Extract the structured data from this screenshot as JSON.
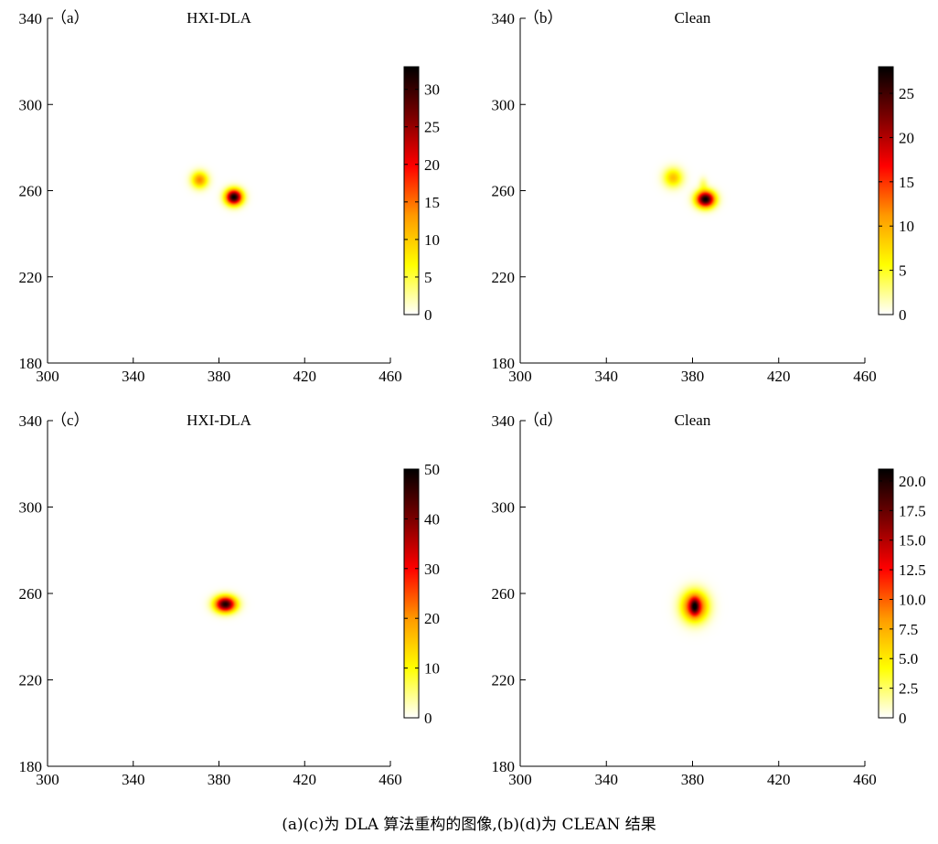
{
  "chart_data": [
    {
      "type": "heatmap",
      "panel_label": "（a）",
      "title": "HXI-DLA",
      "xlim": [
        300,
        460
      ],
      "ylim": [
        180,
        340
      ],
      "xticks": [
        "300",
        "340",
        "380",
        "420",
        "460"
      ],
      "yticks": [
        "180",
        "220",
        "260",
        "300",
        "340"
      ],
      "colorbar": {
        "min": 0,
        "max": 33,
        "ticks": [
          0,
          5,
          10,
          15,
          20,
          25,
          30
        ],
        "tick_labels": [
          "0",
          "5",
          "10",
          "15",
          "20",
          "25",
          "30"
        ]
      },
      "sources": [
        {
          "x": 371,
          "y": 265,
          "peak": 14,
          "sx": 2.6,
          "sy": 2.6
        },
        {
          "x": 387,
          "y": 257,
          "peak": 33,
          "sx": 2.7,
          "sy": 2.5
        }
      ]
    },
    {
      "type": "heatmap",
      "panel_label": "（b）",
      "title": "Clean",
      "xlim": [
        300,
        460
      ],
      "ylim": [
        180,
        340
      ],
      "xticks": [
        "300",
        "340",
        "380",
        "420",
        "460"
      ],
      "yticks": [
        "180",
        "220",
        "260",
        "300",
        "340"
      ],
      "colorbar": {
        "min": 0,
        "max": 28,
        "ticks": [
          0,
          5,
          10,
          15,
          20,
          25
        ],
        "tick_labels": [
          "0",
          "5",
          "10",
          "15",
          "20",
          "25"
        ]
      },
      "sources": [
        {
          "x": 371,
          "y": 266,
          "peak": 9,
          "sx": 3.0,
          "sy": 3.0
        },
        {
          "x": 386,
          "y": 256,
          "peak": 28,
          "sx": 3.0,
          "sy": 2.6
        },
        {
          "x": 385,
          "y": 263,
          "peak": 3,
          "sx": 1.4,
          "sy": 2.2
        }
      ]
    },
    {
      "type": "heatmap",
      "panel_label": "（c）",
      "title": "HXI-DLA",
      "xlim": [
        300,
        460
      ],
      "ylim": [
        180,
        340
      ],
      "xticks": [
        "300",
        "340",
        "380",
        "420",
        "460"
      ],
      "yticks": [
        "180",
        "220",
        "260",
        "300",
        "340"
      ],
      "colorbar": {
        "min": 0,
        "max": 50,
        "ticks": [
          0,
          10,
          20,
          30,
          40,
          50
        ],
        "tick_labels": [
          "0",
          "10",
          "20",
          "30",
          "40",
          "50"
        ]
      },
      "sources": [
        {
          "x": 383,
          "y": 255,
          "peak": 48,
          "sx": 3.4,
          "sy": 2.5
        }
      ]
    },
    {
      "type": "heatmap",
      "panel_label": "（d）",
      "title": "Clean",
      "xlim": [
        300,
        460
      ],
      "ylim": [
        180,
        340
      ],
      "xticks": [
        "300",
        "340",
        "380",
        "420",
        "460"
      ],
      "yticks": [
        "180",
        "220",
        "260",
        "300",
        "340"
      ],
      "colorbar": {
        "min": 0,
        "max": 21,
        "ticks": [
          0,
          2.5,
          5,
          7.5,
          10,
          12.5,
          15,
          17.5,
          20
        ],
        "tick_labels": [
          "0",
          "2.5",
          "5.0",
          "7.5",
          "10.0",
          "12.5",
          "15.0",
          "17.5",
          "20.0"
        ]
      },
      "sources": [
        {
          "x": 381,
          "y": 254,
          "peak": 14,
          "sx": 4.0,
          "sy": 4.6
        },
        {
          "x": 381,
          "y": 254,
          "peak": 8,
          "sx": 1.4,
          "sy": 2.6
        }
      ]
    }
  ],
  "caption": "(a)(c)为 DLA 算法重构的图像,(b)(d)为 CLEAN 结果",
  "colormap": [
    "#ffffff",
    "#ffff00",
    "#ff9900",
    "#ff0000",
    "#7a0000",
    "#000000"
  ]
}
